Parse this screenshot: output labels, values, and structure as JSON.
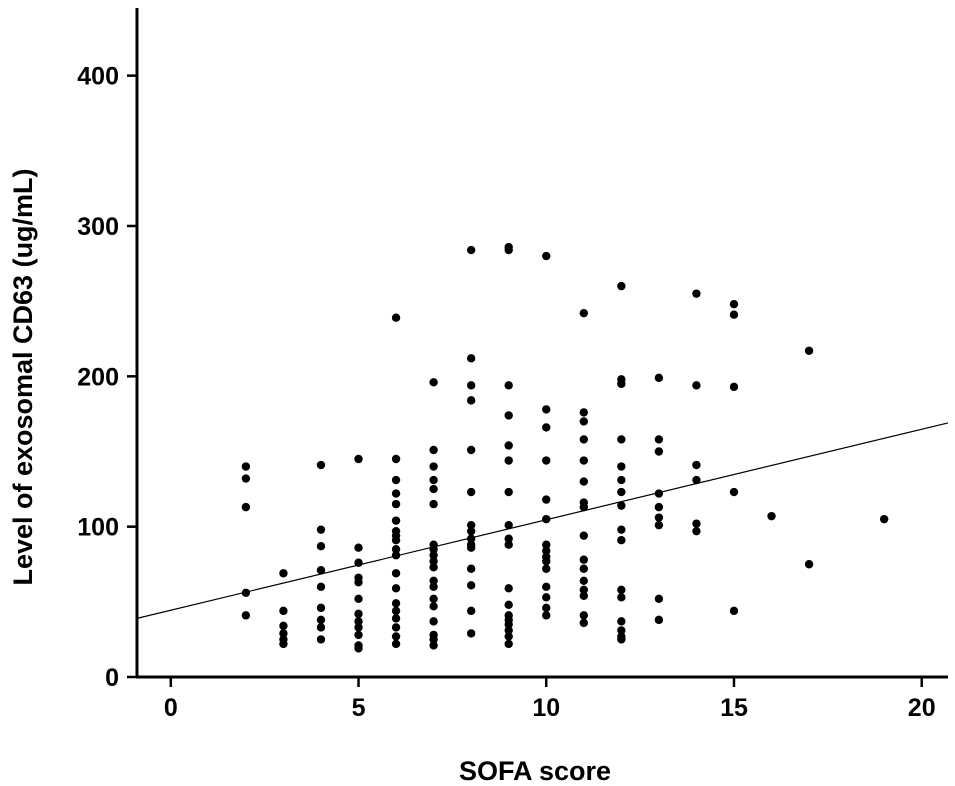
{
  "chart_data": {
    "type": "scatter",
    "title": "",
    "xlabel": "SOFA score",
    "ylabel": "Level of exosomal CD63 (ug/mL)",
    "xlim": [
      -0.9,
      20.7
    ],
    "ylim": [
      0,
      445
    ],
    "xticks": [
      0,
      5,
      10,
      15,
      20
    ],
    "yticks": [
      0,
      100,
      200,
      300,
      400
    ],
    "grid": false,
    "legend": "none",
    "colors": {
      "points": "#000000",
      "axes": "#000000",
      "fit_line": "#000000"
    },
    "trend_line": {
      "type": "linear-fit",
      "x": [
        -0.9,
        20.7
      ],
      "y": [
        39,
        169
      ]
    },
    "points": [
      [
        2,
        140
      ],
      [
        2,
        132
      ],
      [
        2,
        113
      ],
      [
        2,
        56
      ],
      [
        2,
        41
      ],
      [
        3,
        69
      ],
      [
        3,
        44
      ],
      [
        3,
        34
      ],
      [
        3,
        29
      ],
      [
        3,
        25
      ],
      [
        3,
        22
      ],
      [
        4,
        141
      ],
      [
        4,
        98
      ],
      [
        4,
        87
      ],
      [
        4,
        71
      ],
      [
        4,
        60
      ],
      [
        4,
        46
      ],
      [
        4,
        38
      ],
      [
        4,
        33
      ],
      [
        4,
        25
      ],
      [
        5,
        145
      ],
      [
        5,
        86
      ],
      [
        5,
        76
      ],
      [
        5,
        66
      ],
      [
        5,
        63
      ],
      [
        5,
        52
      ],
      [
        5,
        42
      ],
      [
        5,
        37
      ],
      [
        5,
        33
      ],
      [
        5,
        28
      ],
      [
        5,
        21
      ],
      [
        5,
        19
      ],
      [
        6,
        239
      ],
      [
        6,
        145
      ],
      [
        6,
        131
      ],
      [
        6,
        122
      ],
      [
        6,
        115
      ],
      [
        6,
        104
      ],
      [
        6,
        97
      ],
      [
        6,
        94
      ],
      [
        6,
        91
      ],
      [
        6,
        85
      ],
      [
        6,
        81
      ],
      [
        6,
        69
      ],
      [
        6,
        59
      ],
      [
        6,
        49
      ],
      [
        6,
        44
      ],
      [
        6,
        39
      ],
      [
        6,
        33
      ],
      [
        6,
        27
      ],
      [
        6,
        22
      ],
      [
        7,
        196
      ],
      [
        7,
        151
      ],
      [
        7,
        140
      ],
      [
        7,
        131
      ],
      [
        7,
        125
      ],
      [
        7,
        115
      ],
      [
        7,
        88
      ],
      [
        7,
        85
      ],
      [
        7,
        81
      ],
      [
        7,
        77
      ],
      [
        7,
        73
      ],
      [
        7,
        64
      ],
      [
        7,
        60
      ],
      [
        7,
        52
      ],
      [
        7,
        47
      ],
      [
        7,
        37
      ],
      [
        7,
        28
      ],
      [
        7,
        25
      ],
      [
        7,
        21
      ],
      [
        8,
        284
      ],
      [
        8,
        212
      ],
      [
        8,
        194
      ],
      [
        8,
        184
      ],
      [
        8,
        151
      ],
      [
        8,
        123
      ],
      [
        8,
        101
      ],
      [
        8,
        97
      ],
      [
        8,
        92
      ],
      [
        8,
        88
      ],
      [
        8,
        86
      ],
      [
        8,
        72
      ],
      [
        8,
        61
      ],
      [
        8,
        44
      ],
      [
        8,
        29
      ],
      [
        9,
        286
      ],
      [
        9,
        284
      ],
      [
        9,
        194
      ],
      [
        9,
        174
      ],
      [
        9,
        154
      ],
      [
        9,
        144
      ],
      [
        9,
        123
      ],
      [
        9,
        101
      ],
      [
        9,
        92
      ],
      [
        9,
        88
      ],
      [
        9,
        59
      ],
      [
        9,
        48
      ],
      [
        9,
        41
      ],
      [
        9,
        38
      ],
      [
        9,
        35
      ],
      [
        9,
        31
      ],
      [
        9,
        27
      ],
      [
        9,
        22
      ],
      [
        10,
        280
      ],
      [
        10,
        178
      ],
      [
        10,
        166
      ],
      [
        10,
        144
      ],
      [
        10,
        118
      ],
      [
        10,
        105
      ],
      [
        10,
        88
      ],
      [
        10,
        84
      ],
      [
        10,
        80
      ],
      [
        10,
        77
      ],
      [
        10,
        72
      ],
      [
        10,
        60
      ],
      [
        10,
        53
      ],
      [
        10,
        46
      ],
      [
        10,
        41
      ],
      [
        11,
        242
      ],
      [
        11,
        176
      ],
      [
        11,
        170
      ],
      [
        11,
        158
      ],
      [
        11,
        144
      ],
      [
        11,
        130
      ],
      [
        11,
        116
      ],
      [
        11,
        113
      ],
      [
        11,
        94
      ],
      [
        11,
        78
      ],
      [
        11,
        72
      ],
      [
        11,
        64
      ],
      [
        11,
        58
      ],
      [
        11,
        54
      ],
      [
        11,
        41
      ],
      [
        11,
        36
      ],
      [
        12,
        260
      ],
      [
        12,
        198
      ],
      [
        12,
        195
      ],
      [
        12,
        158
      ],
      [
        12,
        140
      ],
      [
        12,
        131
      ],
      [
        12,
        123
      ],
      [
        12,
        114
      ],
      [
        12,
        98
      ],
      [
        12,
        91
      ],
      [
        12,
        58
      ],
      [
        12,
        53
      ],
      [
        12,
        37
      ],
      [
        12,
        31
      ],
      [
        12,
        27
      ],
      [
        12,
        25
      ],
      [
        13,
        199
      ],
      [
        13,
        158
      ],
      [
        13,
        150
      ],
      [
        13,
        122
      ],
      [
        13,
        113
      ],
      [
        13,
        106
      ],
      [
        13,
        101
      ],
      [
        13,
        52
      ],
      [
        13,
        38
      ],
      [
        14,
        255
      ],
      [
        14,
        194
      ],
      [
        14,
        141
      ],
      [
        14,
        131
      ],
      [
        14,
        102
      ],
      [
        14,
        97
      ],
      [
        15,
        248
      ],
      [
        15,
        241
      ],
      [
        15,
        193
      ],
      [
        15,
        123
      ],
      [
        15,
        44
      ],
      [
        16,
        107
      ],
      [
        17,
        217
      ],
      [
        17,
        75
      ],
      [
        19,
        105
      ]
    ]
  }
}
